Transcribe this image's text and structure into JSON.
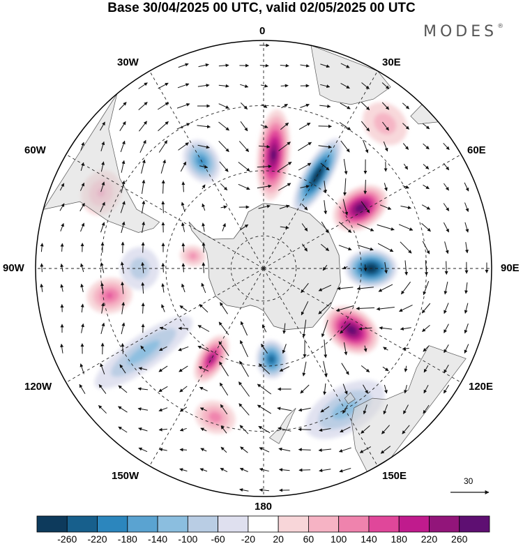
{
  "title": "Base 30/04/2025 00 UTC, valid 02/05/2025 00 UTC",
  "brand": {
    "name": "MODES",
    "mark": "®"
  },
  "longitude_labels": [
    {
      "id": "lon-0",
      "text": "0"
    },
    {
      "id": "lon-30e",
      "text": "30E"
    },
    {
      "id": "lon-60e",
      "text": "60E"
    },
    {
      "id": "lon-90e",
      "text": "90E"
    },
    {
      "id": "lon-120e",
      "text": "120E"
    },
    {
      "id": "lon-150e",
      "text": "150E"
    },
    {
      "id": "lon-180",
      "text": "180"
    },
    {
      "id": "lon-150w",
      "text": "150W"
    },
    {
      "id": "lon-120w",
      "text": "120W"
    },
    {
      "id": "lon-90w",
      "text": "90W"
    },
    {
      "id": "lon-60w",
      "text": "60W"
    },
    {
      "id": "lon-30w",
      "text": "30W"
    }
  ],
  "vector_scale": {
    "label": "30"
  },
  "colorbar": {
    "colors": [
      "#0d3a5c",
      "#175f8c",
      "#2c86bd",
      "#5aa3d1",
      "#8bbedf",
      "#b9cde4",
      "#dfe0ef",
      "#ffffff",
      "#f8d6d9",
      "#f6b3c4",
      "#ef83ad",
      "#e0479a",
      "#c01b8d",
      "#92157a",
      "#5e0f72"
    ],
    "labels": [
      "-260",
      "-220",
      "-180",
      "-140",
      "-100",
      "-60",
      "-20",
      "20",
      "60",
      "100",
      "140",
      "180",
      "220",
      "260"
    ]
  },
  "anomaly_centers": [
    {
      "lon": 30,
      "lat": -57,
      "value": -270,
      "rx_deg": 5,
      "ry_deg": 13
    },
    {
      "lon": 5,
      "lat": -55,
      "value": 230,
      "rx_deg": 6,
      "ry_deg": 14
    },
    {
      "lon": -30,
      "lat": -52,
      "value": -150,
      "rx_deg": 6,
      "ry_deg": 7
    },
    {
      "lon": 58,
      "lat": -55,
      "value": 250,
      "rx_deg": 8,
      "ry_deg": 9
    },
    {
      "lon": 90,
      "lat": -57,
      "value": -270,
      "rx_deg": 8,
      "ry_deg": 8
    },
    {
      "lon": 125,
      "lat": -57,
      "value": 250,
      "rx_deg": 9,
      "ry_deg": 9
    },
    {
      "lon": 175,
      "lat": -62,
      "value": -200,
      "rx_deg": 7,
      "ry_deg": 6
    },
    {
      "lon": -150,
      "lat": -58,
      "value": 180,
      "rx_deg": 5,
      "ry_deg": 8
    },
    {
      "lon": -100,
      "lat": -42,
      "value": 100,
      "rx_deg": 5,
      "ry_deg": 7
    },
    {
      "lon": -125,
      "lat": -45,
      "value": -80,
      "rx_deg": 5,
      "ry_deg": 18
    },
    {
      "lon": -65,
      "lat": -35,
      "value": 60,
      "rx_deg": 6,
      "ry_deg": 6
    },
    {
      "lon": -80,
      "lat": -68,
      "value": 60,
      "rx_deg": 5,
      "ry_deg": 4
    },
    {
      "lon": -162,
      "lat": -42,
      "value": 80,
      "rx_deg": 6,
      "ry_deg": 5
    },
    {
      "lon": 150,
      "lat": -40,
      "value": -80,
      "rx_deg": 14,
      "ry_deg": 7
    },
    {
      "lon": 40,
      "lat": -32,
      "value": 40,
      "rx_deg": 6,
      "ry_deg": 6
    },
    {
      "lon": -90,
      "lat": -52,
      "value": -40,
      "rx_deg": 8,
      "ry_deg": 6
    }
  ]
}
